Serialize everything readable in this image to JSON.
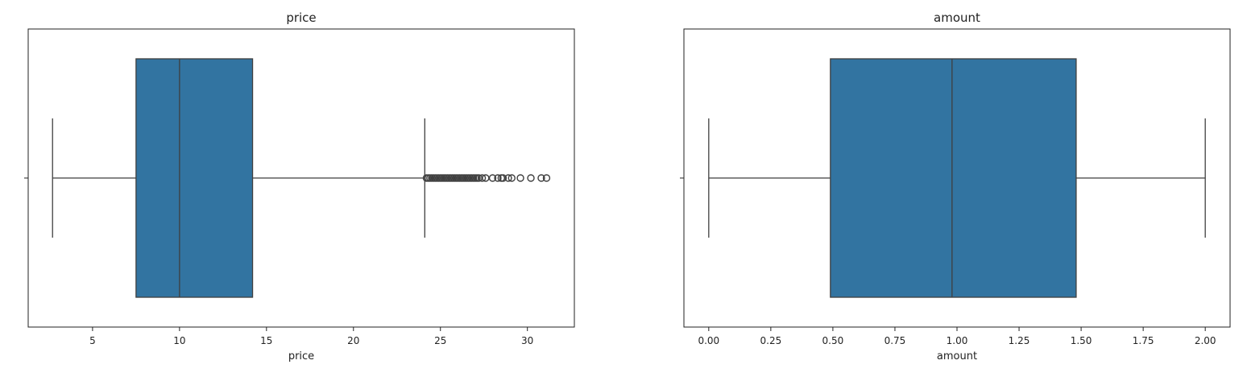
{
  "chart_data": [
    {
      "type": "boxplot",
      "title": "price",
      "xlabel": "price",
      "ylabel": "",
      "xlim": [
        1.3,
        32.7
      ],
      "xticks": [
        5,
        10,
        15,
        20,
        25,
        30
      ],
      "xtick_labels": [
        "5",
        "10",
        "15",
        "20",
        "25",
        "30"
      ],
      "box": {
        "whisker_low": 2.7,
        "q1": 7.5,
        "median": 10.0,
        "q3": 14.2,
        "whisker_high": 24.1
      },
      "outliers": [
        24.2,
        24.3,
        24.4,
        24.5,
        24.6,
        24.7,
        24.8,
        24.9,
        25.0,
        25.1,
        25.2,
        25.3,
        25.4,
        25.5,
        25.6,
        25.7,
        25.8,
        25.9,
        26.0,
        26.1,
        26.2,
        26.3,
        26.4,
        26.5,
        26.6,
        26.7,
        26.8,
        26.9,
        27.0,
        27.1,
        27.2,
        27.4,
        27.6,
        28.0,
        28.3,
        28.5,
        28.6,
        28.9,
        29.1,
        29.6,
        30.2,
        30.8,
        31.1
      ],
      "color": "#3274a1",
      "grid": false,
      "legend": "none"
    },
    {
      "type": "boxplot",
      "title": "amount",
      "xlabel": "amount",
      "ylabel": "",
      "xlim": [
        -0.1,
        2.1
      ],
      "xticks": [
        0.0,
        0.25,
        0.5,
        0.75,
        1.0,
        1.25,
        1.5,
        1.75,
        2.0
      ],
      "xtick_labels": [
        "0.00",
        "0.25",
        "0.50",
        "0.75",
        "1.00",
        "1.25",
        "1.50",
        "1.75",
        "2.00"
      ],
      "box": {
        "whisker_low": 0.0,
        "q1": 0.49,
        "median": 0.98,
        "q3": 1.48,
        "whisker_high": 2.0
      },
      "outliers": [],
      "color": "#3274a1",
      "grid": false,
      "legend": "none"
    }
  ]
}
